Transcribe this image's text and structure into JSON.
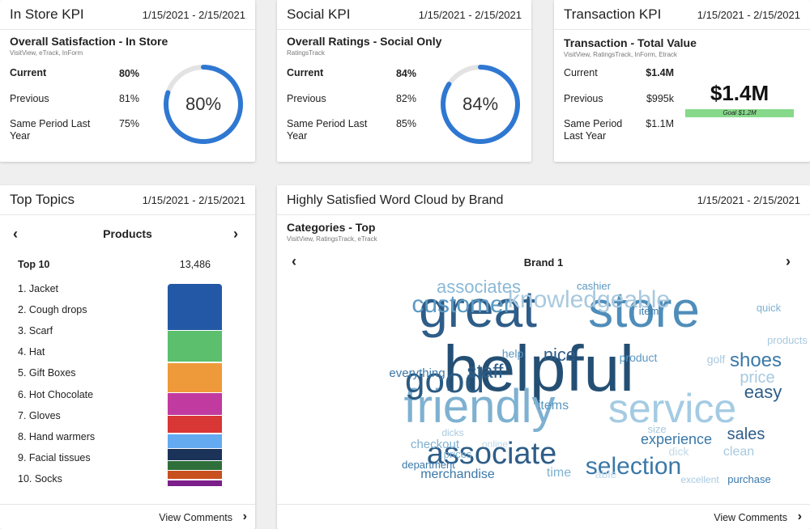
{
  "kpi_cards": [
    {
      "title": "In Store KPI",
      "date": "1/15/2021 - 2/15/2021",
      "subtitle": "Overall Satisfaction - In Store",
      "source": "VisitView, eTrack, InForm",
      "rows": [
        {
          "label": "Current",
          "value": "80%"
        },
        {
          "label": "Previous",
          "value": "81%"
        },
        {
          "label": "Same Period Last",
          "label2": "Year",
          "value": "75%"
        }
      ],
      "ring_text": "80%",
      "ring_fraction": 0.8,
      "ring_color": "#2f78d2"
    },
    {
      "title": "Social KPI",
      "date": "1/15/2021 - 2/15/2021",
      "subtitle": "Overall Ratings - Social Only",
      "source": "RatingsTrack",
      "rows": [
        {
          "label": "Current",
          "value": "84%"
        },
        {
          "label": "Previous",
          "value": "82%"
        },
        {
          "label": "Same Period Last",
          "label2": "Year",
          "value": "85%"
        }
      ],
      "ring_text": "84%",
      "ring_fraction": 0.84,
      "ring_color": "#2f78d2"
    },
    {
      "title": "Transaction KPI",
      "date": "1/15/2021 - 2/15/2021",
      "subtitle": "Transaction - Total Value",
      "source": "VisitView, RatingsTrack, InForm, Etrack",
      "rows": [
        {
          "label": "Current",
          "value": "$1.4M"
        },
        {
          "label": "Previous",
          "value": "$995k"
        },
        {
          "label": "Same Period",
          "label2": "Last Year",
          "value": "$1.1M"
        }
      ],
      "big_value": "$1.4M",
      "goal_label": "Goal $1.2M",
      "goal_color": "#86d98a"
    }
  ],
  "top_topics": {
    "title": "Top Topics",
    "date": "1/15/2021 - 2/15/2021",
    "category": "Products",
    "list_header": "Top 10",
    "total": "13,486",
    "items": [
      {
        "label": "1.  Jacket",
        "color": "#2358a6",
        "share": 0.232
      },
      {
        "label": "2.  Cough drops",
        "color": "#5bbf6d",
        "share": 0.155
      },
      {
        "label": "3.  Scarf",
        "color": "#ef9a3a",
        "share": 0.15
      },
      {
        "label": "4.  Hat",
        "color": "#c13a9f",
        "share": 0.11
      },
      {
        "label": "5.  Gift Boxes",
        "color": "#d93636",
        "share": 0.09
      },
      {
        "label": "6.  Hot Chocolate",
        "color": "#64aaf0",
        "share": 0.073
      },
      {
        "label": "7.  Gloves",
        "color": "#1b3358",
        "share": 0.06
      },
      {
        "label": "8.  Hand warmers",
        "color": "#2f6f3a",
        "share": 0.048
      },
      {
        "label": "9.  Facial tissues",
        "color": "#c8501e",
        "share": 0.045
      },
      {
        "label": "10.  Socks",
        "color": "#7b1f8a",
        "share": 0.037
      }
    ],
    "footer": "View Comments"
  },
  "word_cloud": {
    "title": "Highly Satisfied Word Cloud by Brand",
    "date": "1/15/2021 - 2/15/2021",
    "subtitle": "Categories - Top",
    "source": "VisitView, RatingsTrack, eTrack",
    "brand": "Brand 1",
    "footer": "View Comments",
    "words": [
      "great",
      "store",
      "helpful",
      "friendly",
      "service",
      "good",
      "associate",
      "selection",
      "customer",
      "knowledgeable",
      "associates",
      "nice",
      "shoes",
      "staff",
      "price",
      "easy",
      "experience",
      "sales",
      "help",
      "product",
      "golf",
      "items",
      "everything",
      "checkout",
      "online",
      "dicks",
      "prices",
      "department",
      "merchandise",
      "time",
      "able",
      "dick",
      "clean",
      "size",
      "excellent",
      "purchase",
      "cashier",
      "item",
      "quick",
      "products"
    ]
  },
  "icons": {
    "chevron_left": "‹",
    "chevron_right": "›"
  }
}
